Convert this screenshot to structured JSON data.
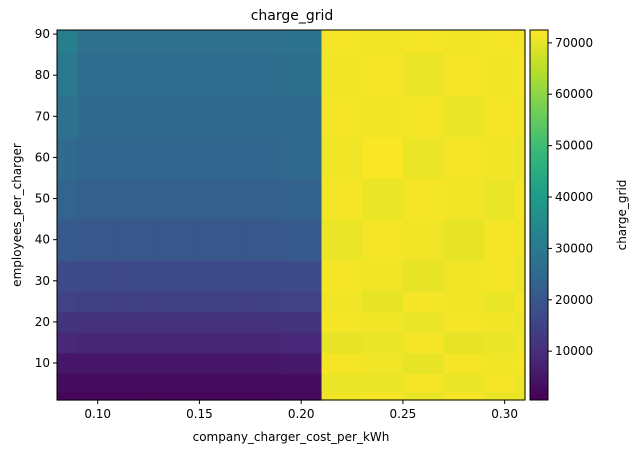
{
  "chart_data": {
    "type": "heatmap",
    "title": "charge_grid",
    "xlabel": "company_charger_cost_per_kWh",
    "ylabel": "employees_per_charger",
    "xlim": [
      0.08,
      0.31
    ],
    "ylim": [
      1,
      91
    ],
    "x_ticks": [
      0.1,
      0.15,
      0.2,
      0.25,
      0.3
    ],
    "x_tick_labels": [
      "0.10",
      "0.15",
      "0.20",
      "0.25",
      "0.30"
    ],
    "y_ticks": [
      10,
      20,
      30,
      40,
      50,
      60,
      70,
      80,
      90
    ],
    "y_tick_labels": [
      "10",
      "20",
      "30",
      "40",
      "50",
      "60",
      "70",
      "80",
      "90"
    ],
    "x": [
      0.08,
      0.1,
      0.12,
      0.14,
      0.16,
      0.18,
      0.2,
      0.22,
      0.24,
      0.26,
      0.28,
      0.3,
      0.31
    ],
    "y": [
      1,
      5,
      10,
      15,
      20,
      25,
      30,
      40,
      50,
      60,
      70,
      80,
      91
    ],
    "z": [
      [
        1500,
        1500,
        1500,
        1500,
        1500,
        1500,
        2000,
        71000,
        71500,
        70500,
        71500,
        70500,
        70500
      ],
      [
        2500,
        2500,
        2500,
        2500,
        2500,
        2500,
        2500,
        70500,
        70500,
        71500,
        70500,
        71500,
        70500
      ],
      [
        5000,
        5000,
        5000,
        5000,
        5000,
        5000,
        5500,
        71500,
        71000,
        70000,
        71500,
        71000,
        71500
      ],
      [
        8500,
        8000,
        8000,
        8000,
        8000,
        8000,
        8500,
        70000,
        70500,
        71500,
        70000,
        70500,
        71000
      ],
      [
        11500,
        11000,
        11000,
        11000,
        11000,
        11000,
        11500,
        71500,
        71000,
        70500,
        71500,
        71000,
        70500
      ],
      [
        14500,
        14000,
        14000,
        14000,
        14000,
        14000,
        14500,
        71000,
        70000,
        71500,
        71000,
        70500,
        71500
      ],
      [
        17000,
        16500,
        16500,
        16500,
        16500,
        16500,
        17000,
        71500,
        71000,
        70000,
        71000,
        71500,
        70500
      ],
      [
        21000,
        20000,
        20000,
        20000,
        20000,
        20000,
        20500,
        70500,
        71500,
        71000,
        70000,
        71500,
        71000
      ],
      [
        23500,
        22500,
        22500,
        22500,
        22500,
        22500,
        23000,
        71500,
        70500,
        71500,
        71000,
        70500,
        71500
      ],
      [
        25500,
        24000,
        24000,
        24000,
        24000,
        24000,
        24500,
        71000,
        72000,
        70500,
        71500,
        71000,
        70500
      ],
      [
        27500,
        25000,
        25000,
        25000,
        25000,
        25000,
        25500,
        71500,
        71000,
        71500,
        70500,
        71500,
        71000
      ],
      [
        29500,
        26000,
        26000,
        26000,
        26000,
        26000,
        26500,
        71000,
        71500,
        70500,
        71500,
        71000,
        71500
      ],
      [
        31500,
        27000,
        27000,
        27000,
        27000,
        27000,
        27500,
        71500,
        71000,
        71500,
        71000,
        71500,
        71000
      ]
    ],
    "colorbar": {
      "label": "charge_grid",
      "range": [
        500,
        72500
      ],
      "ticks": [
        10000,
        20000,
        30000,
        40000,
        50000,
        60000,
        70000
      ],
      "tick_labels": [
        "10000",
        "20000",
        "30000",
        "40000",
        "50000",
        "60000",
        "70000"
      ]
    },
    "colormap": "viridis",
    "grid": false,
    "colormap_stops": [
      "#440154",
      "#482878",
      "#3e4989",
      "#31688e",
      "#26828e",
      "#1f9e89",
      "#35b779",
      "#6ece58",
      "#b5de2b",
      "#fde725"
    ]
  }
}
